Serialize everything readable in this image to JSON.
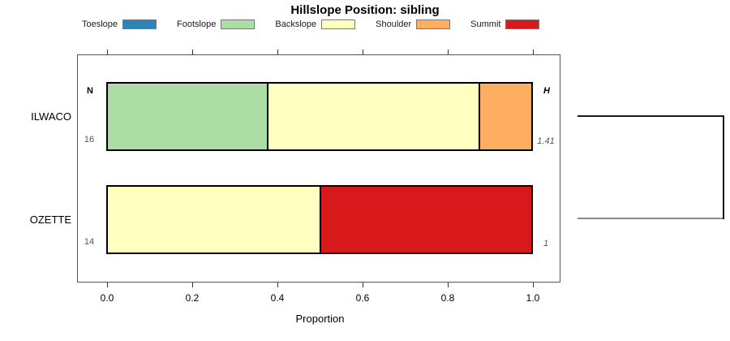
{
  "title": "Hillslope Position: sibling",
  "legend": [
    {
      "label": "Toeslope",
      "color": "#2B83BA"
    },
    {
      "label": "Footslope",
      "color": "#ABDDA4"
    },
    {
      "label": "Backslope",
      "color": "#FFFFBF"
    },
    {
      "label": "Shoulder",
      "color": "#FDAE61"
    },
    {
      "label": "Summit",
      "color": "#D7191C"
    }
  ],
  "chart_data": {
    "type": "bar",
    "variant": "horizontal-stacked-proportions",
    "title": "Hillslope Position: sibling",
    "xlabel": "Proportion",
    "xlim": [
      0,
      1
    ],
    "x_ticks": [
      {
        "value": 0.0,
        "label": "0.0"
      },
      {
        "value": 0.2,
        "label": "0.2"
      },
      {
        "value": 0.4,
        "label": "0.4"
      },
      {
        "value": 0.6,
        "label": "0.6"
      },
      {
        "value": 0.8,
        "label": "0.8"
      },
      {
        "value": 1.0,
        "label": "1.0"
      }
    ],
    "grid": false,
    "legend_position": "top",
    "categories": [
      "ILWACO",
      "OZETTE"
    ],
    "series": [
      {
        "name": "Toeslope",
        "color": "#2B83BA",
        "values": [
          0,
          0
        ]
      },
      {
        "name": "Footslope",
        "color": "#ABDDA4",
        "values": [
          0.375,
          0
        ]
      },
      {
        "name": "Backslope",
        "color": "#FFFFBF",
        "values": [
          0.5,
          0.5
        ]
      },
      {
        "name": "Shoulder",
        "color": "#FDAE61",
        "values": [
          0.125,
          0
        ]
      },
      {
        "name": "Summit",
        "color": "#D7191C",
        "values": [
          0,
          0.5
        ]
      }
    ],
    "row_stats": {
      "n_header": "N",
      "h_header": "H",
      "rows": [
        {
          "category": "ILWACO",
          "n": "16",
          "h": "1.41"
        },
        {
          "category": "OZETTE",
          "n": "14",
          "h": "1"
        }
      ]
    }
  },
  "dendrogram": {
    "leaves": [
      "ILWACO",
      "OZETTE"
    ],
    "branch_colors": [
      "#1a1a1a",
      "#8a8a8a"
    ],
    "connector_color": "#1a1a1a"
  }
}
